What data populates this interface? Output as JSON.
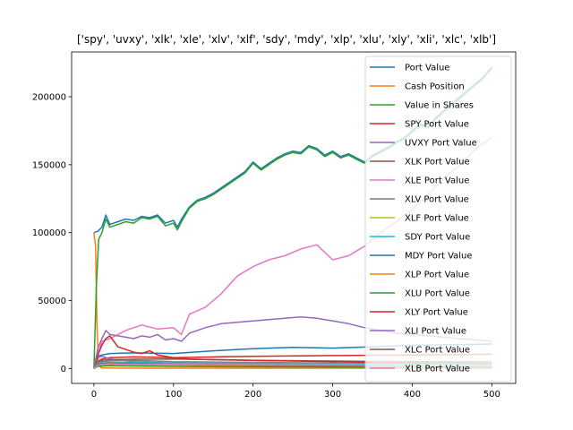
{
  "chart_data": {
    "type": "line",
    "title": "['spy', 'uvxy', 'xlk', 'xle', 'xlv', 'xlf', 'sdy', 'mdy', 'xlp', 'xlu', 'xly', 'xli', 'xlc', 'xlb']",
    "xlabel": "",
    "ylabel": "",
    "xlim": [
      -28,
      530
    ],
    "ylim": [
      -11000,
      233000
    ],
    "xticks": [
      0,
      100,
      200,
      300,
      400,
      500
    ],
    "yticks": [
      0,
      50000,
      100000,
      150000,
      200000
    ],
    "xtick_labels": [
      "0",
      "100",
      "200",
      "300",
      "400",
      "500"
    ],
    "ytick_labels": [
      "0",
      "50000",
      "100000",
      "150000",
      "200000"
    ],
    "grid": false,
    "legend_position": "upper right",
    "series": [
      {
        "name": "Port Value",
        "color": "#1f77b4",
        "x": [
          0,
          5,
          10,
          15,
          20,
          30,
          40,
          50,
          60,
          70,
          80,
          90,
          100,
          105,
          110,
          120,
          130,
          140,
          150,
          160,
          170,
          180,
          190,
          200,
          210,
          220,
          230,
          240,
          250,
          260,
          270,
          280,
          290,
          300,
          310,
          320,
          330,
          340,
          350,
          360,
          370,
          380,
          390,
          400,
          410,
          420,
          430,
          440,
          450,
          460,
          470,
          480,
          490,
          500
        ],
        "y": [
          100000,
          101000,
          104000,
          113000,
          106000,
          108000,
          110000,
          109000,
          112000,
          111000,
          113000,
          107000,
          109000,
          104000,
          110000,
          119000,
          124000,
          126000,
          129000,
          133000,
          137000,
          141000,
          145000,
          152000,
          147000,
          151000,
          155000,
          158000,
          160000,
          159000,
          164000,
          162000,
          157000,
          160000,
          156000,
          158000,
          155000,
          152000,
          157000,
          160000,
          163000,
          167000,
          170000,
          175000,
          180000,
          178000,
          185000,
          190000,
          195000,
          200000,
          205000,
          210000,
          215000,
          222000
        ]
      },
      {
        "name": "Cash Position",
        "color": "#ff7f0e",
        "x": [
          0,
          2,
          4,
          6,
          10,
          20,
          50,
          100,
          200,
          300,
          400,
          500
        ],
        "y": [
          100000,
          90000,
          30000,
          2000,
          500,
          300,
          200,
          200,
          200,
          200,
          200,
          200
        ]
      },
      {
        "name": "Value in Shares",
        "color": "#2ca02c",
        "x": [
          0,
          3,
          6,
          10,
          15,
          20,
          30,
          40,
          50,
          60,
          70,
          80,
          90,
          100,
          105,
          110,
          120,
          130,
          140,
          150,
          160,
          170,
          180,
          190,
          200,
          210,
          220,
          230,
          240,
          250,
          260,
          270,
          280,
          290,
          300,
          310,
          320,
          330,
          340,
          350,
          360,
          370,
          380,
          390,
          400,
          410,
          420,
          430,
          440,
          450,
          460,
          470,
          480,
          490,
          500
        ],
        "y": [
          0,
          60000,
          95000,
          100000,
          110000,
          104000,
          106000,
          108000,
          107000,
          111000,
          110000,
          112000,
          105000,
          107000,
          102000,
          108000,
          118000,
          123000,
          125000,
          128000,
          132000,
          136000,
          140000,
          144000,
          151000,
          146000,
          150000,
          154000,
          157000,
          159000,
          158000,
          163000,
          161000,
          156000,
          159000,
          155000,
          157000,
          154000,
          151000,
          156000,
          159000,
          162000,
          166000,
          169000,
          174000,
          179000,
          177000,
          184000,
          189000,
          194000,
          199000,
          204000,
          209000,
          214000,
          221000
        ]
      },
      {
        "name": "SPY Port Value",
        "color": "#d62728",
        "x": [
          0,
          5,
          10,
          20,
          50,
          100,
          200,
          300,
          400,
          500
        ],
        "y": [
          0,
          5000,
          7000,
          8000,
          8500,
          8000,
          9000,
          9500,
          10000,
          10500
        ]
      },
      {
        "name": "UVXY Port Value",
        "color": "#9467bd",
        "x": [
          0,
          5,
          10,
          20,
          50,
          100,
          200,
          300,
          400,
          500
        ],
        "y": [
          0,
          8000,
          9000,
          7000,
          5000,
          4000,
          2500,
          2000,
          1500,
          1200
        ]
      },
      {
        "name": "XLK Port Value",
        "color": "#8c564b",
        "x": [
          0,
          5,
          10,
          20,
          50,
          100,
          200,
          300,
          400,
          500
        ],
        "y": [
          0,
          5000,
          6000,
          6500,
          6800,
          7000,
          6000,
          5500,
          5000,
          5000
        ]
      },
      {
        "name": "XLE Port Value",
        "color": "#e377c2",
        "x": [
          0,
          10,
          20,
          40,
          60,
          80,
          100,
          110,
          120,
          140,
          160,
          180,
          200,
          220,
          240,
          260,
          280,
          300,
          320,
          340,
          360,
          380,
          400,
          420,
          440,
          460,
          480,
          500
        ],
        "y": [
          0,
          20000,
          22000,
          28000,
          32000,
          29000,
          30000,
          25000,
          40000,
          45000,
          55000,
          68000,
          75000,
          80000,
          83000,
          88000,
          91000,
          80000,
          83000,
          90000,
          100000,
          108000,
          117000,
          128000,
          140000,
          150000,
          162000,
          170000
        ]
      },
      {
        "name": "XLV Port Value",
        "color": "#7f7f7f",
        "x": [
          0,
          5,
          10,
          20,
          50,
          100,
          200,
          300,
          400,
          500
        ],
        "y": [
          0,
          4000,
          5000,
          5500,
          6000,
          5000,
          4500,
          4000,
          3500,
          3500
        ]
      },
      {
        "name": "XLF Port Value",
        "color": "#bcbd22",
        "x": [
          0,
          5,
          10,
          20,
          50,
          100,
          200,
          300,
          400,
          500
        ],
        "y": [
          0,
          3000,
          4000,
          4500,
          4000,
          3500,
          3000,
          2500,
          2000,
          2000
        ]
      },
      {
        "name": "SDY Port Value",
        "color": "#17becf",
        "x": [
          0,
          5,
          10,
          20,
          50,
          100,
          200,
          300,
          400,
          500
        ],
        "y": [
          0,
          3500,
          4000,
          4200,
          4500,
          4000,
          3800,
          3500,
          3200,
          3000
        ]
      },
      {
        "name": "MDY Port Value",
        "color": "#1f77b4",
        "x": [
          0,
          5,
          10,
          20,
          50,
          100,
          150,
          200,
          250,
          300,
          350,
          400,
          450,
          500
        ],
        "y": [
          0,
          9000,
          10000,
          11000,
          11500,
          11000,
          13000,
          14500,
          15500,
          15000,
          16000,
          17000,
          17500,
          18000
        ]
      },
      {
        "name": "XLP Port Value",
        "color": "#ff7f0e",
        "x": [
          0,
          5,
          10,
          20,
          50,
          100,
          200,
          300,
          400,
          500
        ],
        "y": [
          0,
          2000,
          2500,
          3000,
          2800,
          2500,
          2000,
          1800,
          1500,
          1500
        ]
      },
      {
        "name": "XLU Port Value",
        "color": "#2ca02c",
        "x": [
          0,
          5,
          10,
          20,
          50,
          100,
          200,
          300,
          400,
          500
        ],
        "y": [
          0,
          1500,
          1800,
          2000,
          1800,
          1500,
          1200,
          1000,
          900,
          800
        ]
      },
      {
        "name": "XLY Port Value",
        "color": "#d62728",
        "x": [
          0,
          5,
          10,
          15,
          20,
          25,
          30,
          40,
          50,
          60,
          70,
          80,
          100,
          120,
          150,
          200,
          250,
          300,
          350,
          400,
          450,
          500
        ],
        "y": [
          0,
          10000,
          17000,
          22000,
          24000,
          20000,
          16000,
          14000,
          12000,
          11000,
          13000,
          10000,
          8000,
          7000,
          6500,
          6000,
          5500,
          5000,
          4500,
          4000,
          4000,
          3800
        ]
      },
      {
        "name": "XLI Port Value",
        "color": "#9467bd",
        "x": [
          0,
          5,
          10,
          15,
          20,
          30,
          40,
          50,
          60,
          70,
          80,
          90,
          100,
          110,
          120,
          140,
          160,
          180,
          200,
          220,
          240,
          260,
          280,
          300,
          320,
          340,
          360,
          380,
          400,
          420,
          440,
          460,
          480,
          500
        ],
        "y": [
          0,
          15000,
          22000,
          28000,
          25000,
          24000,
          23000,
          22000,
          24000,
          23000,
          25000,
          21000,
          22000,
          20000,
          26000,
          30000,
          33000,
          34000,
          35000,
          36000,
          37000,
          38000,
          37000,
          35000,
          33000,
          30000,
          28000,
          26000,
          25000,
          24000,
          23000,
          22000,
          21000,
          20000
        ]
      },
      {
        "name": "XLC Port Value",
        "color": "#8c564b",
        "x": [
          0,
          5,
          10,
          20,
          50,
          100,
          200,
          300,
          400,
          500
        ],
        "y": [
          0,
          3000,
          3500,
          4000,
          3800,
          3000,
          2500,
          2000,
          2000,
          1800
        ]
      },
      {
        "name": "XLB Port Value",
        "color": "#e377c2",
        "x": [
          0,
          5,
          10,
          20,
          50,
          100,
          200,
          300,
          400,
          500
        ],
        "y": [
          0,
          2500,
          3000,
          3500,
          3200,
          3000,
          2800,
          2500,
          2200,
          2000
        ]
      }
    ]
  }
}
